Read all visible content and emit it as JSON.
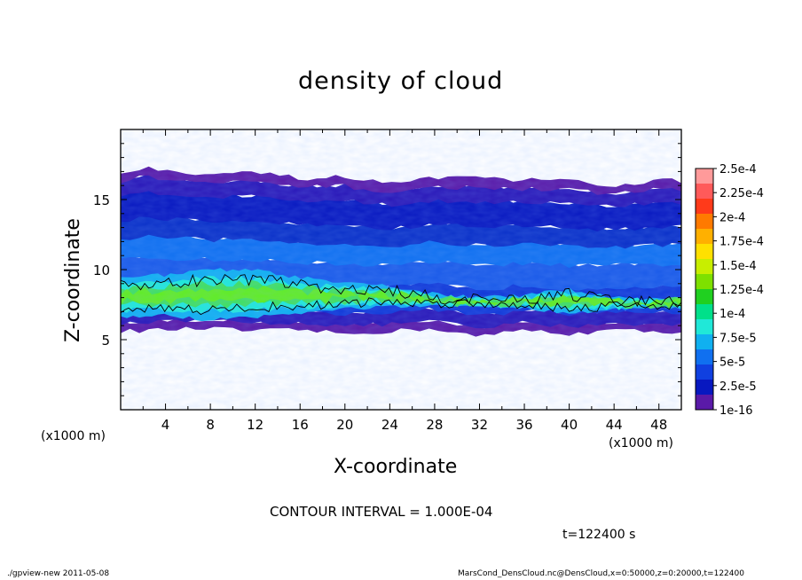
{
  "title": "density of cloud",
  "footer": {
    "left": "./gpview-new   2011-05-08",
    "right": "MarsCond_DensCloud.nc@DensCloud,x=0:50000,z=0:20000,t=122400"
  },
  "contour_interval_text": "CONTOUR INTERVAL = 1.000E-04",
  "time_text": "t=122400 s",
  "chart_data": {
    "type": "heatmap",
    "title": "density of cloud",
    "xlabel": "X-coordinate",
    "ylabel": "Z-coordinate",
    "x_unit_label_left": "(x1000 m)",
    "x_unit_label_right": "(x1000 m)",
    "xlim": [
      0,
      50
    ],
    "ylim": [
      0,
      20
    ],
    "x_ticks": [
      4,
      8,
      12,
      16,
      20,
      24,
      28,
      32,
      36,
      40,
      44,
      48
    ],
    "y_ticks": [
      5,
      10,
      15
    ],
    "contour_interval": 0.0001,
    "contour_levels": [
      0.0001
    ],
    "colorbar": {
      "labels": [
        "2.5e-4",
        "2.25e-4",
        "2e-4",
        "1.75e-4",
        "1.5e-4",
        "1.25e-4",
        "1e-4",
        "7.5e-5",
        "5e-5",
        "2.5e-5",
        "1e-16"
      ],
      "colors": [
        "#ff9a9a",
        "#ff5a5a",
        "#ff3a1a",
        "#ff7a00",
        "#ffb000",
        "#ffe000",
        "#c8ee00",
        "#7ee000",
        "#20d020",
        "#00e08a",
        "#20e8d8",
        "#10b0f0",
        "#1070f0",
        "#1040e0",
        "#0818c0",
        "#5a1aa8"
      ]
    },
    "cloud_layer": {
      "bottom_km": [
        [
          0,
          5.6
        ],
        [
          4,
          5.7
        ],
        [
          8,
          5.8
        ],
        [
          12,
          5.6
        ],
        [
          16,
          5.7
        ],
        [
          20,
          5.4
        ],
        [
          24,
          5.6
        ],
        [
          28,
          5.8
        ],
        [
          32,
          5.2
        ],
        [
          36,
          5.7
        ],
        [
          40,
          5.4
        ],
        [
          44,
          5.7
        ],
        [
          48,
          5.5
        ],
        [
          50,
          5.6
        ]
      ],
      "top_km": [
        [
          0,
          16.8
        ],
        [
          2,
          17.2
        ],
        [
          8,
          16.7
        ],
        [
          12,
          16.8
        ],
        [
          16,
          16.4
        ],
        [
          20,
          16.5
        ],
        [
          24,
          16.0
        ],
        [
          28,
          16.4
        ],
        [
          32,
          16.4
        ],
        [
          36,
          16.3
        ],
        [
          40,
          16.2
        ],
        [
          44,
          15.9
        ],
        [
          48,
          16.3
        ],
        [
          50,
          16.2
        ]
      ],
      "high_density_band_km": [
        [
          0,
          7.1,
          9.1
        ],
        [
          4,
          7.2,
          9.1
        ],
        [
          8,
          7.0,
          9.4
        ],
        [
          12,
          7.2,
          9.4
        ],
        [
          16,
          7.3,
          9.0
        ],
        [
          20,
          7.5,
          8.7
        ],
        [
          24,
          7.6,
          8.6
        ],
        [
          28,
          7.5,
          8.1
        ],
        [
          32,
          7.5,
          7.9
        ],
        [
          36,
          7.4,
          8.0
        ],
        [
          40,
          7.2,
          8.3
        ],
        [
          44,
          7.3,
          7.9
        ],
        [
          48,
          7.4,
          7.8
        ],
        [
          50,
          7.3,
          7.9
        ]
      ]
    }
  }
}
